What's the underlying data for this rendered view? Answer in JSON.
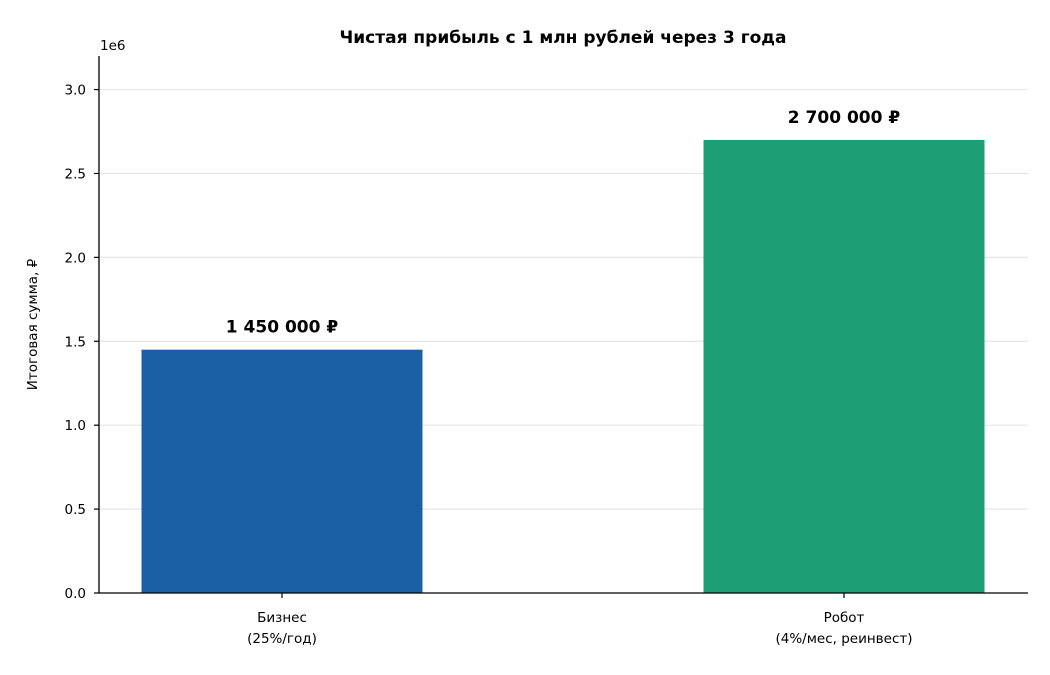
{
  "chart_data": {
    "type": "bar",
    "title": "Чистая прибыль с 1 млн рублей через 3 года",
    "xlabel": "",
    "ylabel": "Итоговая сумма, ₽",
    "y_offset_text": "1e6",
    "ylim": [
      0,
      3200000
    ],
    "yticks": [
      0,
      500000,
      1000000,
      1500000,
      2000000,
      2500000,
      3000000
    ],
    "ytick_labels": [
      "0.0",
      "0.5",
      "1.0",
      "1.5",
      "2.0",
      "2.5",
      "3.0"
    ],
    "grid": "y",
    "categories": [
      [
        "Бизнес",
        "(25%/год)"
      ],
      [
        "Робот",
        "(4%/мес, реинвест)"
      ]
    ],
    "values": [
      1450000,
      2700000
    ],
    "value_labels": [
      "1 450 000 ₽",
      "2 700 000 ₽"
    ],
    "colors": [
      "#1b5fa5",
      "#1e9e74"
    ]
  }
}
